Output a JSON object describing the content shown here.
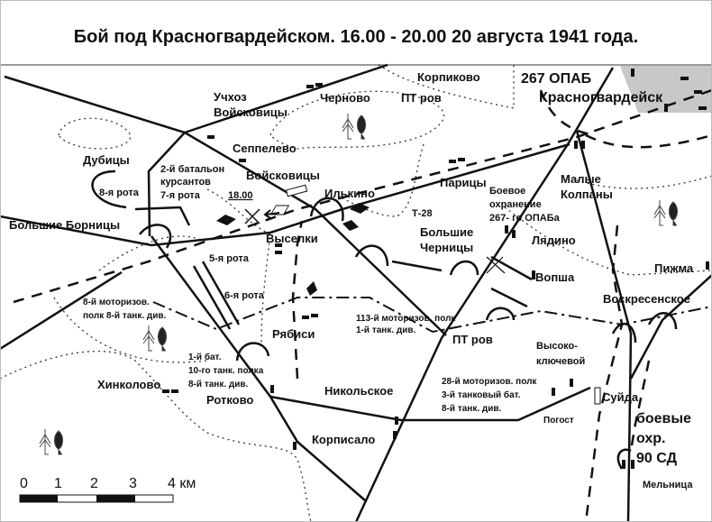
{
  "title": "Бой под Красногвардейском.  16.00 - 20.00  20 августа 1941 года.",
  "colors": {
    "city_area": "#c8c8c8",
    "lines": "#111111",
    "header_border": "#9a9a9a"
  },
  "places": {
    "korpikovo": "Корпиково",
    "chernovo": "Черново",
    "pt_rov_north": "ПТ ров",
    "opab": "267 ОПАБ",
    "krasnogvardeisk": "Красногвардейск",
    "uchkhoz_1": "Учхоз",
    "uchkhoz_2": "Войсковицы",
    "seppelevo": "Сеппелево",
    "dubitsy": "Дубицы",
    "voiskovitsy": "Войсковицы",
    "ilkino": "Илькино",
    "paritsy": "Парицы",
    "malye_1": "Малые",
    "malye_2": "Колпаны",
    "bolshie_bornitsy": "Большие Борницы",
    "vyselki": "Выселки",
    "bolshie_chernitsy_1": "Большие",
    "bolshie_chernitsy_2": "Черницы",
    "lyadino": "Лядино",
    "pizhma": "Пижма",
    "vopsha": "Вопша",
    "voskresenskoe": "Воскресенское",
    "ryabisi": "Рябиси",
    "pt_rov_south": "ПТ ров",
    "vysoko_1": "Высоко-",
    "vysoko_2": "ключевой",
    "khinkolovo": "Хинколово",
    "nikolskoe": "Никольское",
    "rotkovo": "Ротково",
    "suida": "Суйда",
    "pogost": "Погост",
    "korpisalo": "Корписало",
    "melnitsa": "Мельница"
  },
  "units": {
    "bat2_1": "2-й батальон",
    "bat2_2": "курсантов",
    "bat2_3": "7-я рота",
    "rota8": "8-я рота",
    "time": "18.00",
    "boevoe_1": "Боевое",
    "boevoe_2": "охранение",
    "boevoe_3": "267- го ОПАБа",
    "t28": "Т-28",
    "rota5": "5-я рота",
    "rota6": "6-я рота",
    "mp8_1": "8-й моторизов.",
    "mp8_2": "полк 8-й танк. див.",
    "mp113_1": "113-й моторизов. полк",
    "mp113_2": "1-й танк. див.",
    "bat1_1": "1-й бат.",
    "bat1_2": "10-го танк. полка",
    "bat1_3": "8-й танк. див.",
    "mp28_1": "28-й моторизов. полк",
    "mp28_2": "3-й танковый бат.",
    "mp28_3": "8-й танк. див.",
    "sd90_1": "боевые",
    "sd90_2": "охр.",
    "sd90_3": "90 СД"
  },
  "scale": {
    "ticks": [
      "0",
      "1",
      "2",
      "3",
      "4 км"
    ]
  },
  "icons": [
    "forest-icon",
    "tank-icon",
    "village-icon",
    "crossed-out-icon",
    "arrow-icon"
  ]
}
